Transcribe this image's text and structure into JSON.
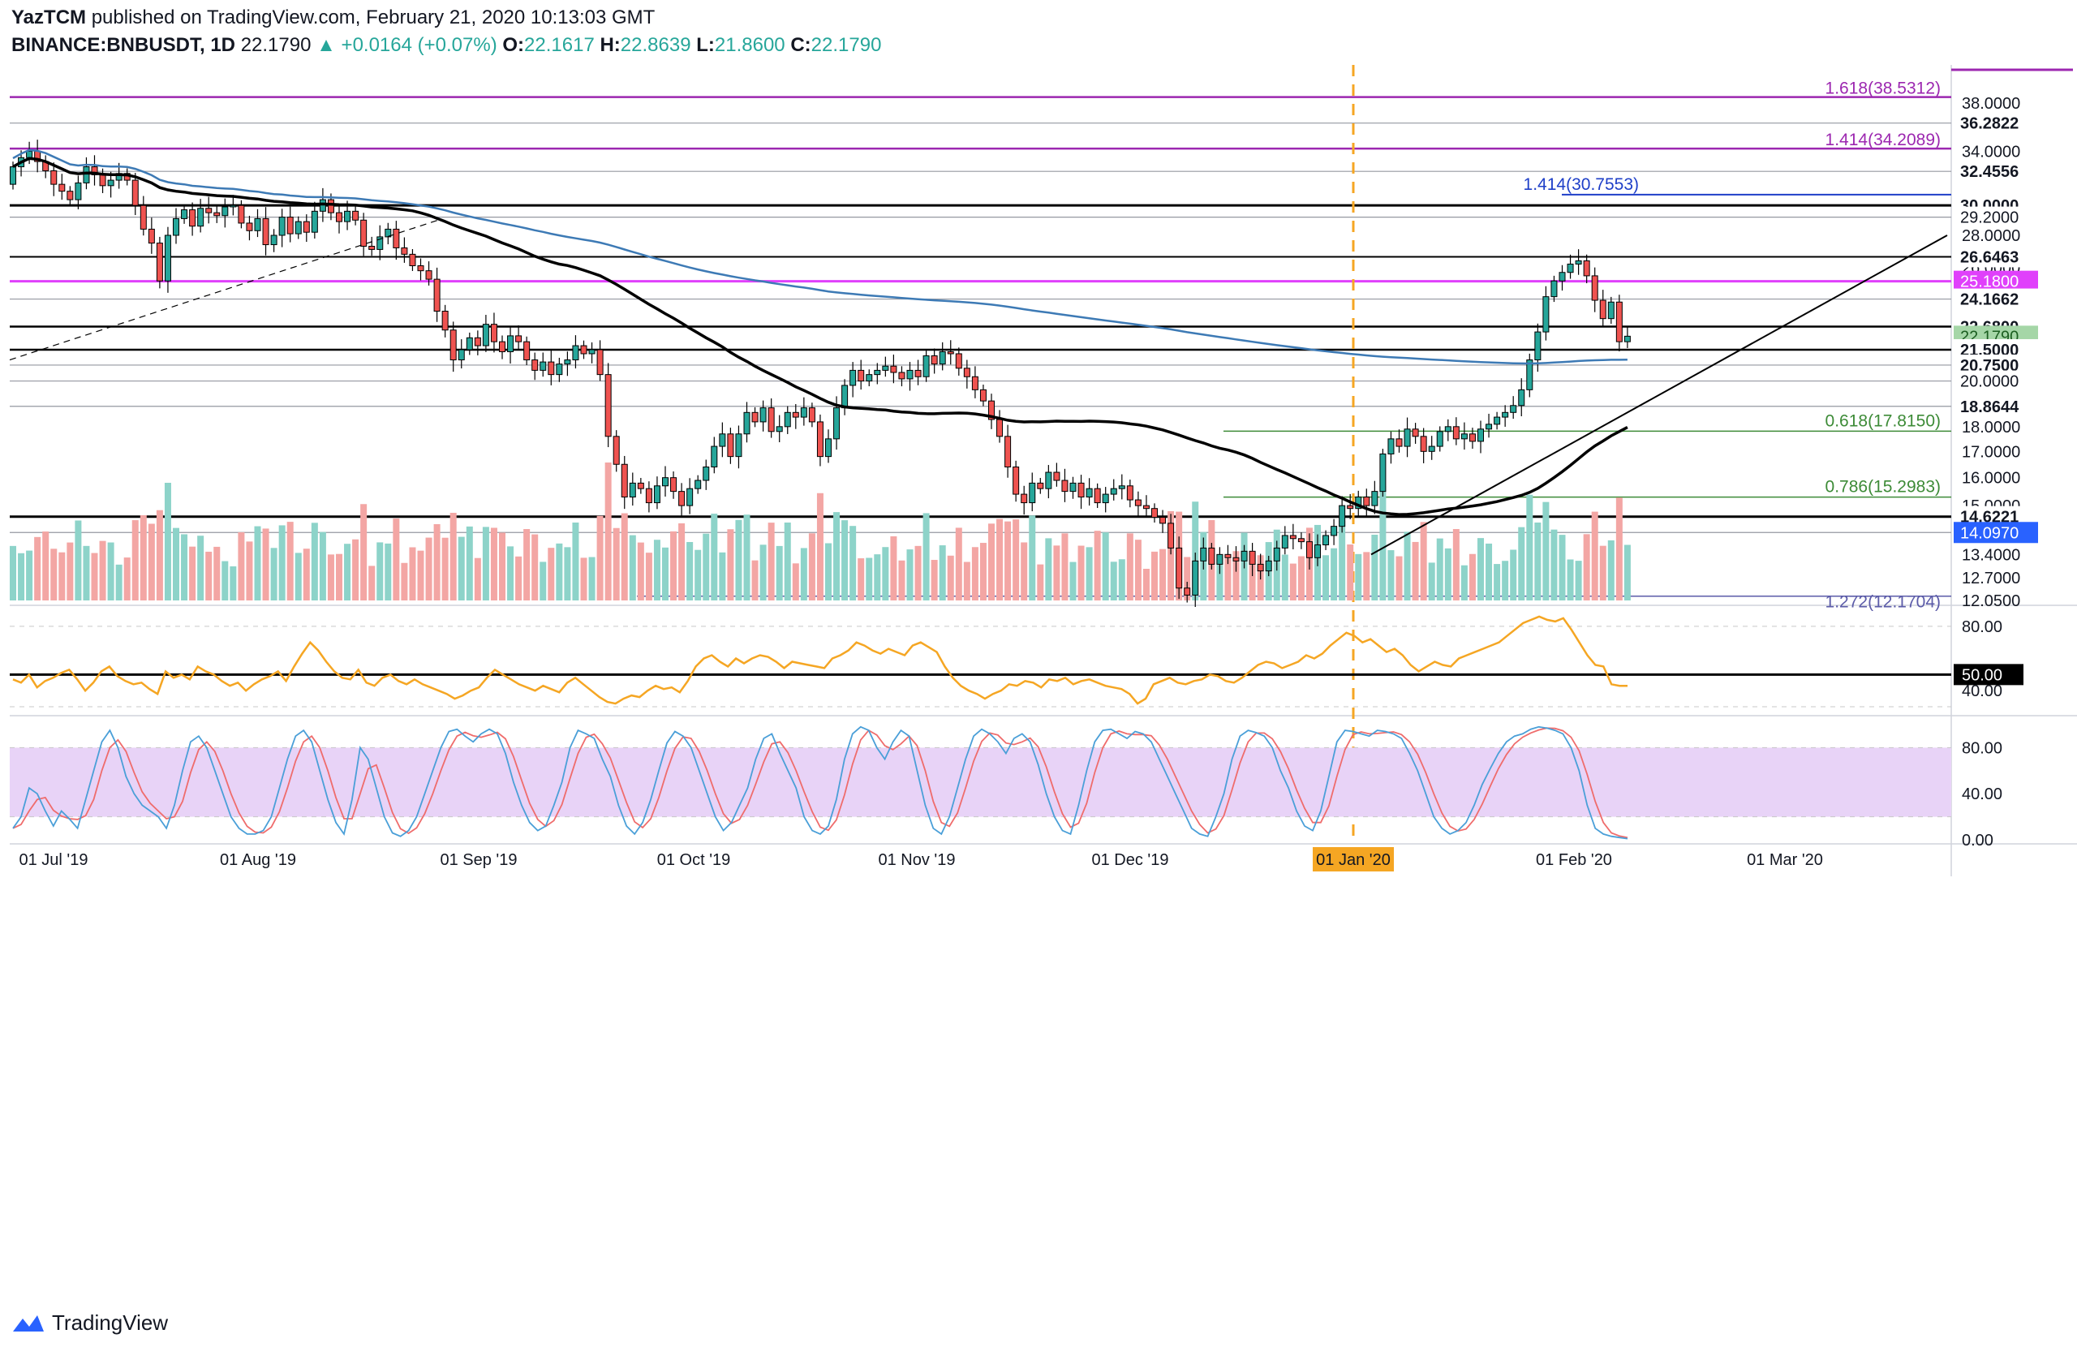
{
  "header": {
    "author": "YazTCM",
    "published_text": "published on TradingView.com, February 21, 2020 10:13:03 GMT",
    "symbol": "BINANCE:BNBUSDT, 1D",
    "last": "22.1790",
    "change": "▲ +0.0164 (+0.07%)",
    "ohlc": {
      "o_label": "O:",
      "o": "22.1617",
      "h_label": "H:",
      "h": "22.8639",
      "l_label": "L:",
      "l": "21.8600",
      "c_label": "C:",
      "c": "22.1790"
    }
  },
  "footer": {
    "brand": "TradingView"
  },
  "colors": {
    "up": "#26a69a",
    "down": "#ef5350",
    "vol_up": "#8dd3c9",
    "vol_down": "#f3a6a4",
    "ma_black": "#000000",
    "ma_blue": "#3d7ab5",
    "fib_ext": "#9c27b0",
    "fib_green": "#3d8b37",
    "magenta": "#e040fb",
    "orange": "#f5a623",
    "rsi": "#f5a623",
    "stoch_k": "#4a9fd8",
    "stoch_d": "#ef6c6c",
    "stoch_band": "#e8d3f7"
  },
  "chart_data": [
    {
      "type": "candlestick",
      "panel": "price",
      "symbol": "BNBUSDT",
      "interval": "1D",
      "y_ticks": [
        "38.0000",
        "34.0000",
        "28.0000",
        "26.0000",
        "18.0000",
        "17.0000",
        "16.0000",
        "15.0000",
        "13.4000",
        "12.7000",
        "12.0500"
      ],
      "x_ticks": [
        "01 Jul '19",
        "01 Aug '19",
        "01 Sep '19",
        "01 Oct '19",
        "01 Nov '19",
        "01 Dec '19",
        "01 Jan '20",
        "01 Feb '20",
        "01 Mar '20"
      ],
      "close_series": [
        32.8,
        33.5,
        34.0,
        33.2,
        32.5,
        31.5,
        31.0,
        30.4,
        31.6,
        32.8,
        32.2,
        31.4,
        31.8,
        32.3,
        31.8,
        30.0,
        28.4,
        27.5,
        25.2,
        28.0,
        29.1,
        29.7,
        28.6,
        29.8,
        29.5,
        29.3,
        29.9,
        30.0,
        28.8,
        28.3,
        29.1,
        27.4,
        28.0,
        29.2,
        28.1,
        28.9,
        28.2,
        29.6,
        30.4,
        29.5,
        28.9,
        29.6,
        29.0,
        27.3,
        27.1,
        27.9,
        28.4,
        27.2,
        26.8,
        26.1,
        25.8,
        25.3,
        23.5,
        22.5,
        21.0,
        21.5,
        22.1,
        21.7,
        22.8,
        21.9,
        21.4,
        22.2,
        21.9,
        21.0,
        20.5,
        20.9,
        20.3,
        20.8,
        21.0,
        21.7,
        21.3,
        21.5,
        20.3,
        17.6,
        16.5,
        15.3,
        15.8,
        15.6,
        15.1,
        15.7,
        16.0,
        15.5,
        15.0,
        15.6,
        15.9,
        16.4,
        17.2,
        17.7,
        16.8,
        17.7,
        18.6,
        18.2,
        18.8,
        17.8,
        18.0,
        18.6,
        18.4,
        18.8,
        18.2,
        16.8,
        17.5,
        18.8,
        19.8,
        20.5,
        20.0,
        20.3,
        20.5,
        20.7,
        20.4,
        20.1,
        20.5,
        20.2,
        21.2,
        20.8,
        21.4,
        21.3,
        20.6,
        20.2,
        19.6,
        19.1,
        18.3,
        17.6,
        16.4,
        15.4,
        15.1,
        15.8,
        15.6,
        16.2,
        15.9,
        15.5,
        15.8,
        15.3,
        15.6,
        15.1,
        15.4,
        15.6,
        15.7,
        15.2,
        15.0,
        14.9,
        14.6,
        14.4,
        13.6,
        12.4,
        12.2,
        13.2,
        13.6,
        13.1,
        13.4,
        13.3,
        13.2,
        13.5,
        13.1,
        12.9,
        13.2,
        13.6,
        14.0,
        13.9,
        13.8,
        13.3,
        13.7,
        14.0,
        14.3,
        15.0,
        14.9,
        15.3,
        15.0,
        15.5,
        16.9,
        17.5,
        17.2,
        17.9,
        17.6,
        17.0,
        17.2,
        17.8,
        18.0,
        17.5,
        17.7,
        17.4,
        17.9,
        18.1,
        18.4,
        18.6,
        18.9,
        19.6,
        21.0,
        22.4,
        24.3,
        25.2,
        25.7,
        26.2,
        26.4,
        25.5,
        24.1,
        23.1,
        24.0,
        21.9,
        22.18
      ],
      "levels_right": [
        "36.2822",
        "32.4556",
        "30.0000",
        "29.2000",
        "26.6463",
        "25.1800",
        "24.1662",
        "22.6800",
        "22.1790",
        "21.5000",
        "20.7500",
        "20.0000",
        "18.8644",
        "14.6221",
        "14.0970"
      ],
      "fib_annotations": [
        "1.618(38.5312)",
        "1.414(34.2089)",
        "1.414(30.7553)",
        "0.618(17.8150)",
        "0.786(15.2983)",
        "1.272(12.1704)"
      ],
      "moving_averages": [
        "black MA",
        "blue MA"
      ],
      "volume": true
    },
    {
      "type": "line",
      "panel": "rsi",
      "y_ticks": [
        "80.00",
        "40.00"
      ],
      "level_label": "50.00",
      "values": [
        47,
        45,
        50,
        42,
        46,
        48,
        51,
        53,
        47,
        40,
        45,
        52,
        55,
        49,
        46,
        44,
        45,
        41,
        38,
        52,
        48,
        50,
        47,
        55,
        52,
        50,
        46,
        43,
        45,
        40,
        44,
        47,
        49,
        52,
        46,
        55,
        63,
        70,
        65,
        58,
        52,
        48,
        47,
        53,
        45,
        43,
        48,
        50,
        46,
        44,
        47,
        44,
        42,
        40,
        38,
        35,
        37,
        40,
        42,
        48,
        53,
        50,
        47,
        44,
        42,
        40,
        43,
        41,
        39,
        45,
        48,
        44,
        40,
        36,
        33,
        32,
        35,
        37,
        36,
        40,
        43,
        41,
        42,
        39,
        46,
        55,
        60,
        62,
        58,
        55,
        60,
        57,
        60,
        62,
        61,
        58,
        54,
        58,
        57,
        56,
        55,
        54,
        60,
        62,
        65,
        70,
        68,
        65,
        63,
        66,
        64,
        62,
        68,
        70,
        67,
        64,
        55,
        48,
        43,
        40,
        38,
        35,
        38,
        40,
        44,
        43,
        46,
        45,
        42,
        47,
        46,
        48,
        44,
        46,
        47,
        45,
        43,
        42,
        41,
        38,
        32,
        35,
        44,
        46,
        48,
        45,
        44,
        46,
        47,
        50,
        49,
        46,
        45,
        48,
        52,
        56,
        58,
        57,
        54,
        56,
        58,
        62,
        60,
        63,
        68,
        72,
        76,
        74,
        70,
        72,
        68,
        64,
        66,
        62,
        56,
        52,
        55,
        58,
        56,
        55,
        60,
        62,
        64,
        66,
        68,
        70,
        74,
        78,
        82,
        84,
        86,
        84,
        83,
        85,
        78,
        70,
        62,
        56,
        55,
        44,
        43,
        43
      ],
      "ylim": [
        28,
        90
      ]
    },
    {
      "type": "line",
      "panel": "stochastic",
      "y_ticks": [
        "80.00",
        "40.00",
        "0.00"
      ],
      "band": [
        20,
        80
      ],
      "series": [
        {
          "values": [
            10,
            20,
            45,
            40,
            25,
            12,
            25,
            18,
            10,
            35,
            60,
            85,
            95,
            80,
            55,
            40,
            30,
            25,
            20,
            10,
            30,
            60,
            85,
            90,
            80,
            60,
            40,
            20,
            10,
            5,
            5,
            8,
            20,
            45,
            70,
            90,
            95,
            85,
            60,
            35,
            15,
            5,
            35,
            80,
            70,
            45,
            20,
            6,
            3,
            8,
            20,
            40,
            60,
            80,
            94,
            96,
            90,
            85,
            92,
            96,
            92,
            75,
            50,
            30,
            15,
            8,
            12,
            30,
            50,
            80,
            95,
            92,
            88,
            70,
            55,
            30,
            12,
            5,
            15,
            35,
            60,
            84,
            94,
            90,
            80,
            60,
            40,
            20,
            8,
            15,
            30,
            45,
            70,
            88,
            92,
            75,
            60,
            45,
            20,
            8,
            5,
            12,
            35,
            70,
            92,
            98,
            95,
            80,
            70,
            85,
            95,
            90,
            60,
            30,
            10,
            5,
            20,
            45,
            70,
            90,
            96,
            92,
            85,
            75,
            88,
            92,
            85,
            65,
            40,
            20,
            8,
            5,
            30,
            60,
            85,
            95,
            96,
            92,
            88,
            94,
            92,
            85,
            70,
            55,
            40,
            25,
            10,
            5,
            3,
            20,
            40,
            70,
            90,
            95,
            93,
            90,
            80,
            60,
            45,
            25,
            12,
            8,
            25,
            55,
            85,
            95,
            94,
            92,
            90,
            95,
            94,
            92,
            88,
            75,
            60,
            40,
            20,
            10,
            5,
            8,
            15,
            30,
            48,
            62,
            75,
            85,
            90,
            92,
            96,
            98,
            97,
            95,
            92,
            80,
            60,
            30,
            10,
            5,
            3,
            2,
            1
          ]
        }
      ],
      "ylim": [
        0,
        100
      ]
    }
  ]
}
